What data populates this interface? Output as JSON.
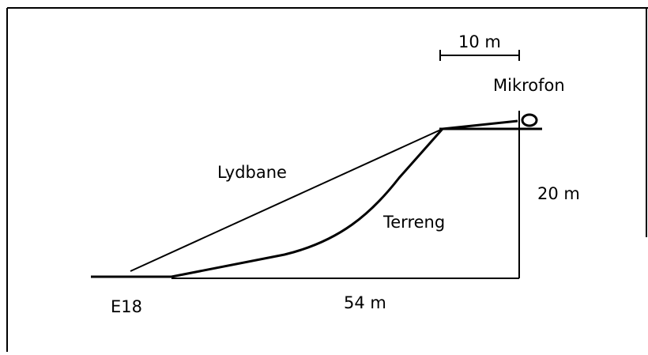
{
  "labels": {
    "scale": "10 m",
    "microphone": "Mikrofon",
    "sound_path": "Lydbane",
    "height": "20 m",
    "terrain": "Terreng",
    "road": "E18",
    "distance": "54 m"
  }
}
